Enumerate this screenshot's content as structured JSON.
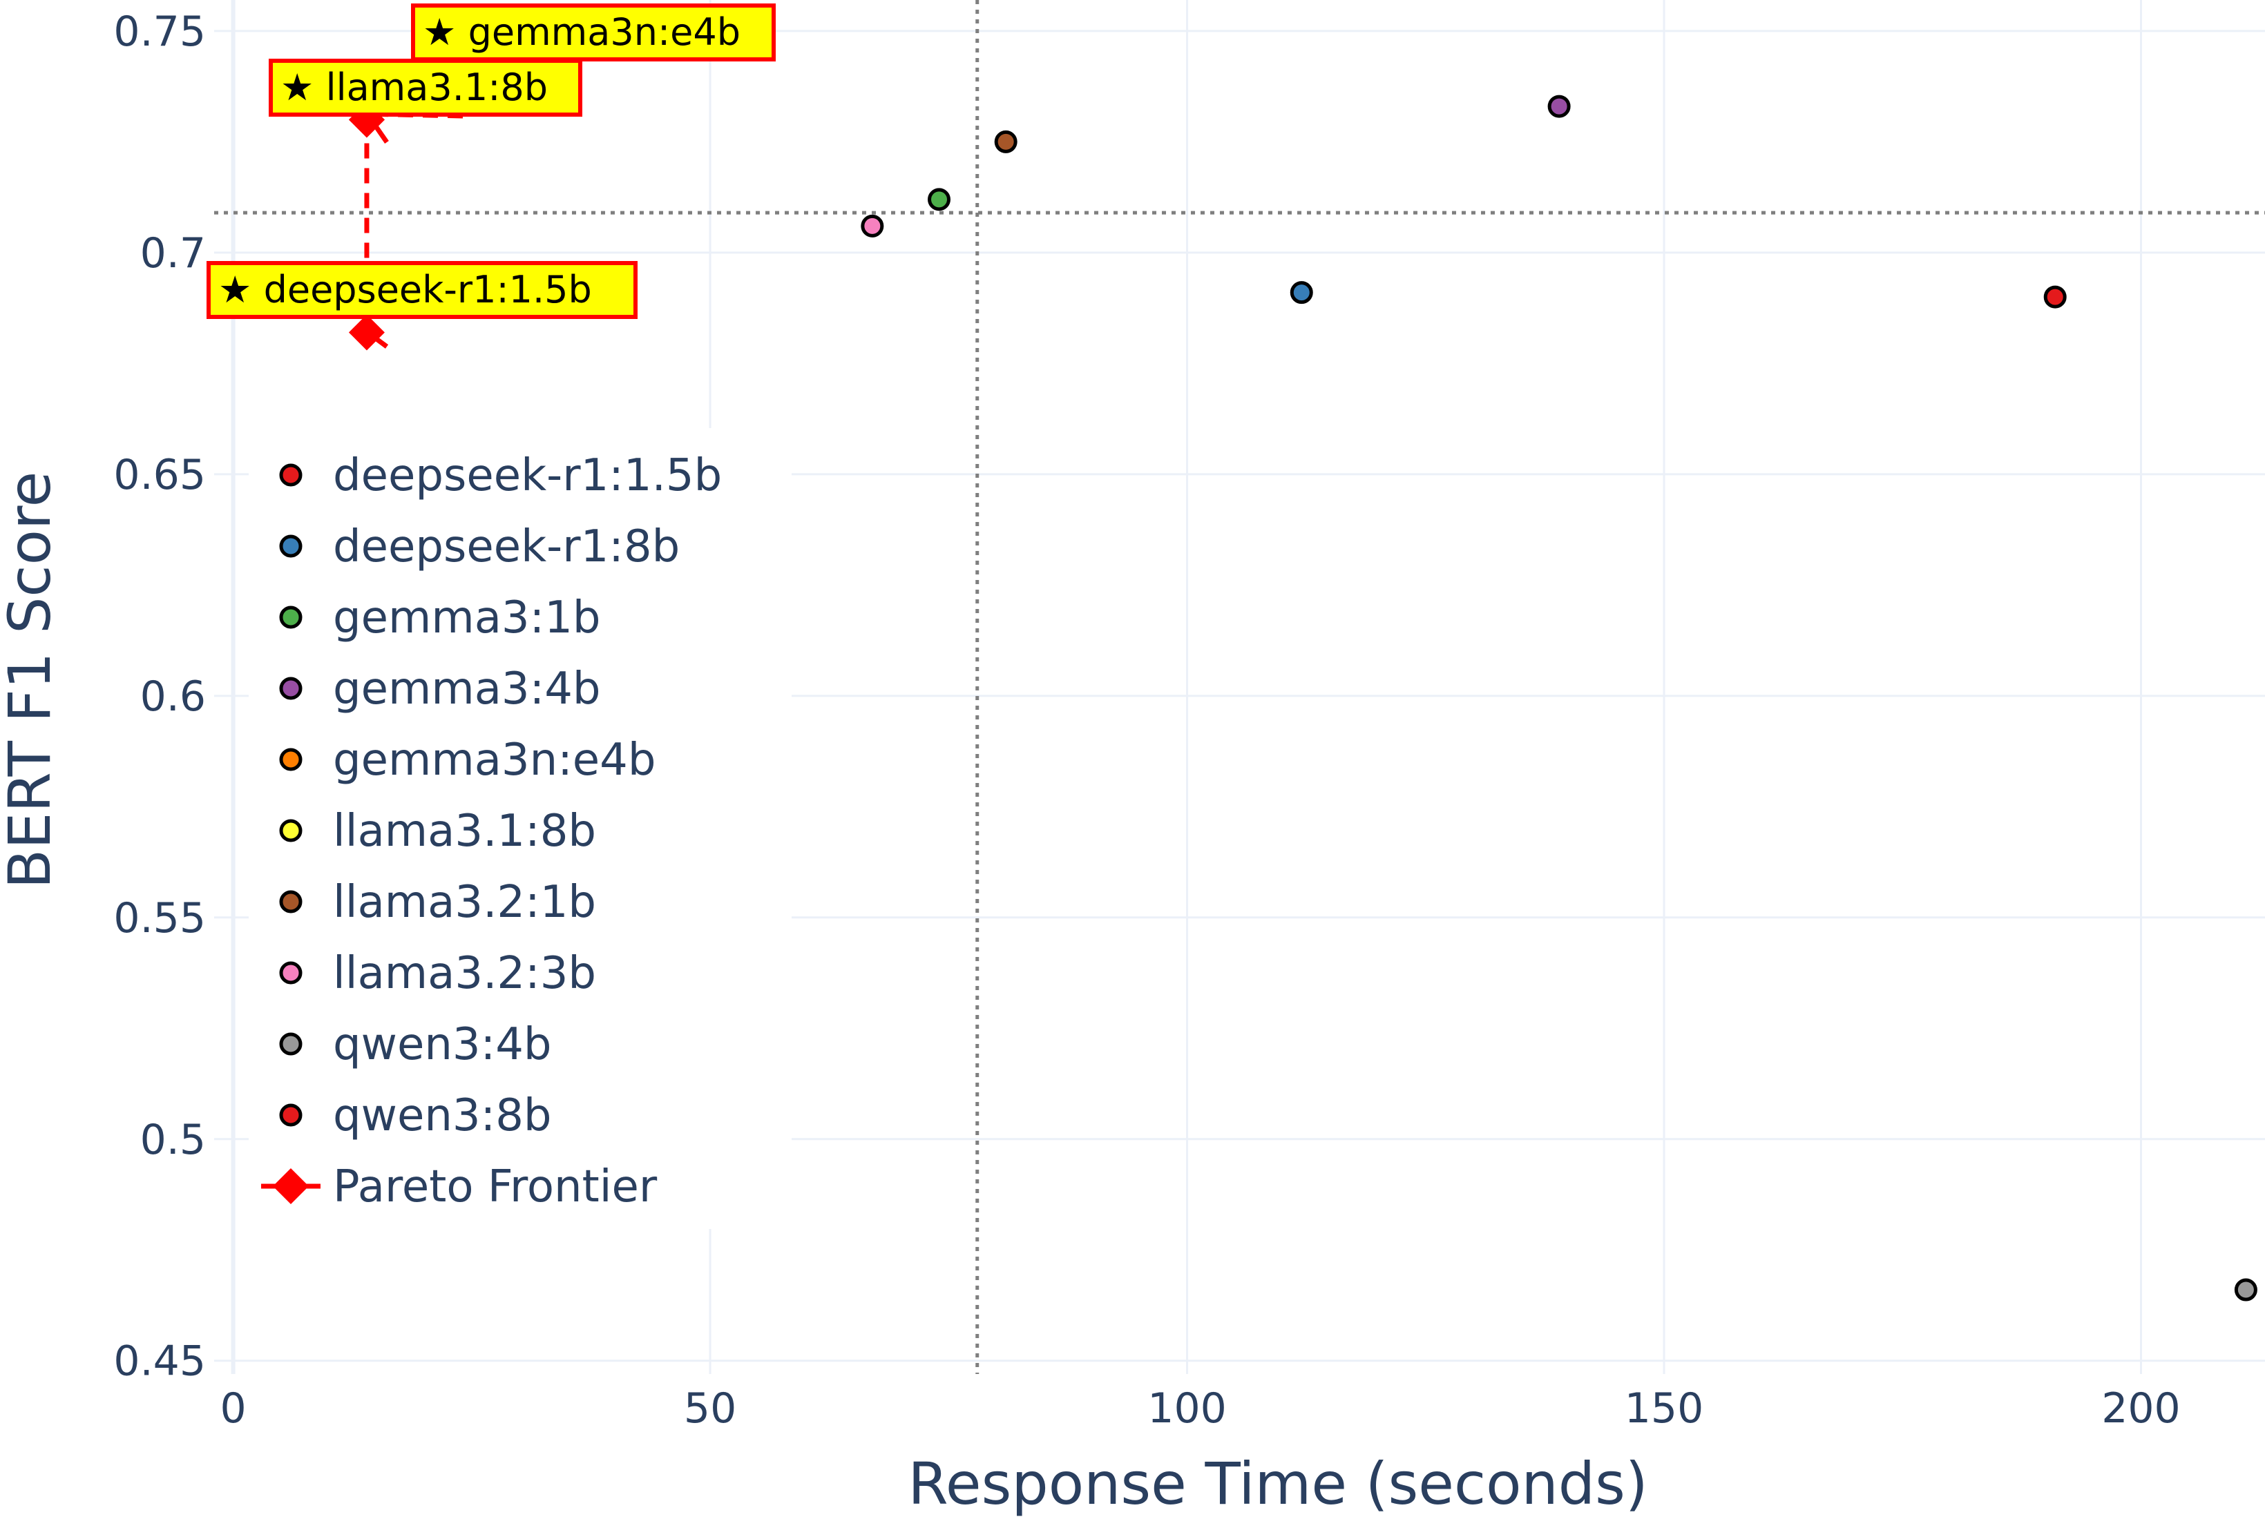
{
  "chart_data": {
    "type": "scatter",
    "title": "",
    "xlabel": "Response Time (seconds)",
    "ylabel": "BERT F1 Score",
    "xlim": [
      -2,
      213
    ],
    "ylim": [
      0.447,
      0.757
    ],
    "x_ticks": [
      0,
      50,
      100,
      150,
      200
    ],
    "x_tick_labels": [
      "0",
      "50",
      "100",
      "150",
      "200"
    ],
    "y_ticks": [
      0.45,
      0.5,
      0.55,
      0.6,
      0.65,
      0.7,
      0.75
    ],
    "y_tick_labels": [
      "0.45",
      "0.5",
      "0.55",
      "0.6",
      "0.65",
      "0.7",
      "0.75"
    ],
    "grid": true,
    "legend_position": "left",
    "series": [
      {
        "name": "deepseek-r1:1.5b",
        "color": "#e41a1c",
        "points": [
          {
            "x": 14,
            "y": 0.682
          }
        ]
      },
      {
        "name": "deepseek-r1:8b",
        "color": "#377eb8",
        "points": [
          {
            "x": 112,
            "y": 0.691
          }
        ]
      },
      {
        "name": "gemma3:1b",
        "color": "#4daf4a",
        "points": [
          {
            "x": 74,
            "y": 0.712
          }
        ]
      },
      {
        "name": "gemma3:4b",
        "color": "#984ea3",
        "points": [
          {
            "x": 139,
            "y": 0.733
          }
        ]
      },
      {
        "name": "gemma3n:e4b",
        "color": "#ff7f00",
        "points": [
          {
            "x": 14,
            "y": 0.73
          }
        ]
      },
      {
        "name": "llama3.1:8b",
        "color": "#ffff33",
        "points": [
          {
            "x": 14,
            "y": 0.73
          }
        ]
      },
      {
        "name": "llama3.2:1b",
        "color": "#a65628",
        "points": [
          {
            "x": 81,
            "y": 0.725
          }
        ]
      },
      {
        "name": "llama3.2:3b",
        "color": "#f781bf",
        "points": [
          {
            "x": 67,
            "y": 0.706
          }
        ]
      },
      {
        "name": "qwen3:4b",
        "color": "#999999",
        "points": [
          {
            "x": 211,
            "y": 0.466
          }
        ]
      },
      {
        "name": "qwen3:8b",
        "color": "#e41a1c",
        "points": [
          {
            "x": 191,
            "y": 0.69
          }
        ]
      }
    ],
    "pareto_frontier": {
      "name": "Pareto Frontier",
      "color": "#ff0000",
      "points": [
        {
          "x": 14,
          "y": 0.682
        },
        {
          "x": 14,
          "y": 0.73
        },
        {
          "x": 14,
          "y": 0.73
        }
      ]
    },
    "reference_lines": {
      "x": 78,
      "y": 0.709
    },
    "annotations": [
      {
        "text": "★ gemma3n:e4b",
        "x": 14,
        "y": 0.73
      },
      {
        "text": "★ llama3.1:8b",
        "x": 14,
        "y": 0.73
      },
      {
        "text": "★ deepseek-r1:1.5b",
        "x": 14,
        "y": 0.682
      }
    ]
  }
}
